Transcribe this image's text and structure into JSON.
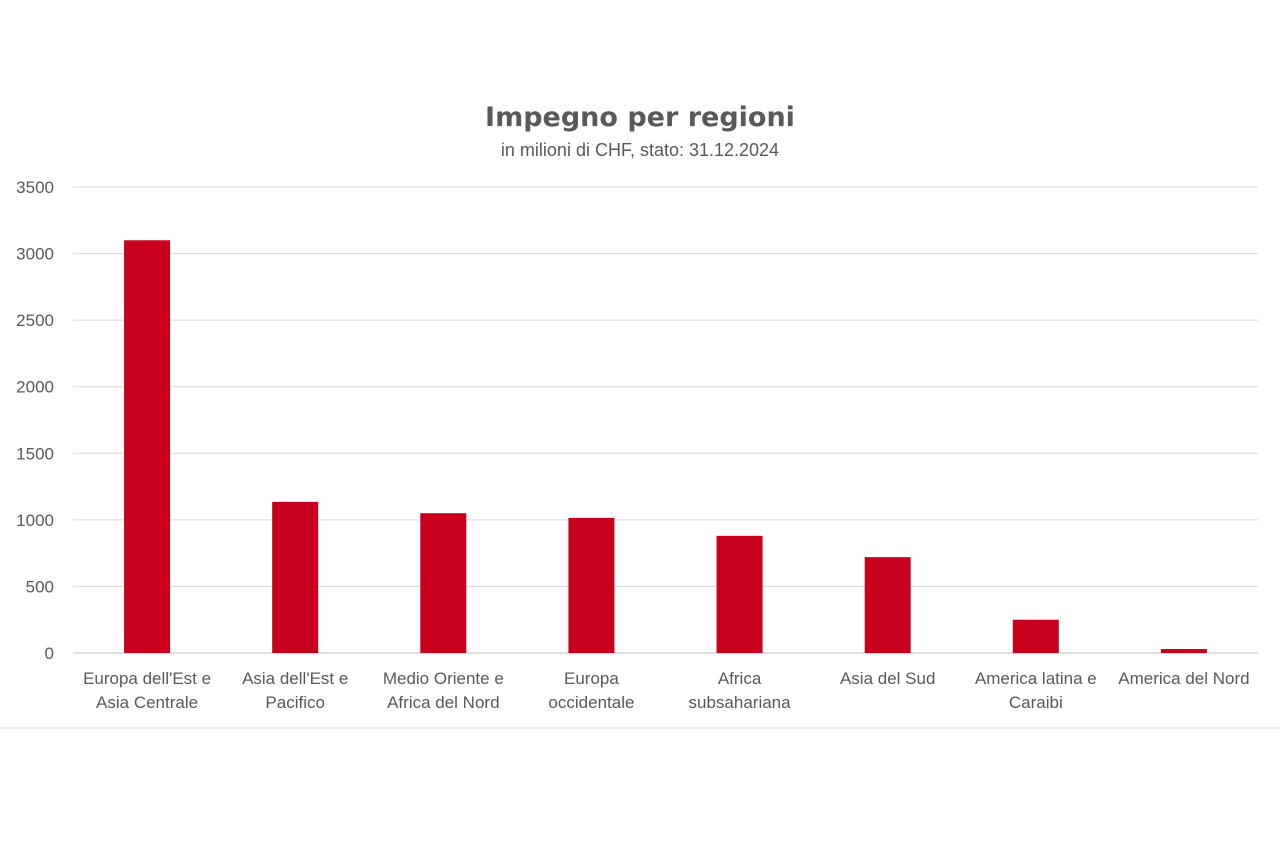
{
  "chart_data": {
    "type": "bar",
    "title": "Impegno per regioni",
    "subtitle": "in milioni di CHF, stato: 31.12.2024",
    "categories": [
      [
        "Europa dell'Est  e",
        "Asia Centrale"
      ],
      [
        "Asia dell'Est e",
        "Pacifico"
      ],
      [
        "Medio Oriente e",
        "Africa del Nord"
      ],
      [
        "Europa",
        "occidentale"
      ],
      [
        "Africa",
        "subsahariana"
      ],
      [
        "Asia del Sud"
      ],
      [
        "America latina e",
        "Caraibi"
      ],
      [
        "America del Nord"
      ]
    ],
    "values": [
      3100,
      1135,
      1050,
      1015,
      880,
      720,
      250,
      30
    ],
    "ylim": [
      0,
      3500
    ],
    "yticks": [
      "0",
      "500",
      "1000",
      "1500",
      "2000",
      "2500",
      "3000",
      "3500"
    ],
    "grid": true,
    "bar_color": "#c8001e"
  }
}
